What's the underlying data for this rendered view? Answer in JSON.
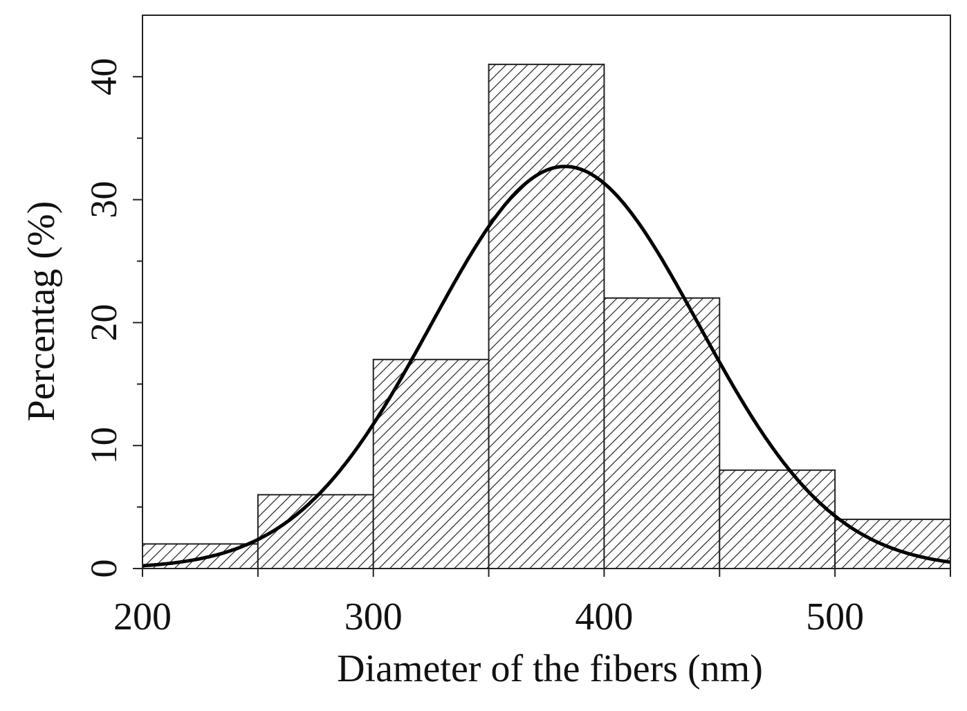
{
  "chart_data": {
    "type": "bar",
    "subtype": "histogram",
    "xlabel": "Diameter of the fibers (nm)",
    "ylabel": "Percentag (%)",
    "xlim": [
      200,
      550
    ],
    "ylim": [
      0,
      45
    ],
    "xticks": [
      {
        "value": 200,
        "label": "200"
      },
      {
        "value": 300,
        "label": "300"
      },
      {
        "value": 400,
        "label": "400"
      },
      {
        "value": 500,
        "label": "500"
      }
    ],
    "yticks": [
      {
        "value": 0,
        "label": "0"
      },
      {
        "value": 10,
        "label": "10"
      },
      {
        "value": 20,
        "label": "20"
      },
      {
        "value": 30,
        "label": "30"
      },
      {
        "value": 40,
        "label": "40"
      }
    ],
    "bins": [
      {
        "from": 200,
        "to": 250,
        "value": 2
      },
      {
        "from": 250,
        "to": 300,
        "value": 6
      },
      {
        "from": 300,
        "to": 350,
        "value": 17
      },
      {
        "from": 350,
        "to": 400,
        "value": 41
      },
      {
        "from": 400,
        "to": 450,
        "value": 22
      },
      {
        "from": 450,
        "to": 500,
        "value": 8
      },
      {
        "from": 500,
        "to": 550,
        "value": 4
      }
    ],
    "fit_curve": {
      "type": "normal",
      "mean": 383,
      "sd": 58,
      "peak": 32.7
    },
    "bar_fill": "diagonal-hatch",
    "line_color": "#000000",
    "grid": false,
    "legend": "none"
  }
}
